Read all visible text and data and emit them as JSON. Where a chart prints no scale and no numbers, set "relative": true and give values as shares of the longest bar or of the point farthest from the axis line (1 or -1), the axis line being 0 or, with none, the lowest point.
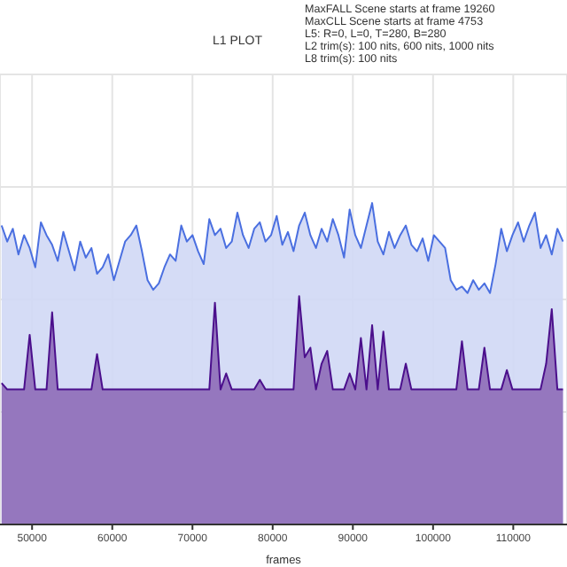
{
  "chart_data": {
    "type": "area",
    "title": "L1 PLOT",
    "xlabel": "frames",
    "relative": true,
    "grid": true,
    "annotations": [
      "MaxFALL Scene starts at frame 19260",
      "MaxCLL Scene starts at frame 4753",
      "L5: R=0, L=0, T=280, B=280",
      "L2 trim(s): 100 nits, 600 nits, 1000 nits",
      "L8 trim(s): 100 nits"
    ],
    "x": [
      46200,
      46900,
      47600,
      48300,
      49000,
      49700,
      50400,
      51100,
      51800,
      52500,
      53200,
      53900,
      54600,
      55300,
      56000,
      56700,
      57400,
      58100,
      58800,
      59500,
      60200,
      60900,
      61600,
      62300,
      63000,
      63700,
      64400,
      65100,
      65800,
      66500,
      67200,
      67900,
      68600,
      69300,
      70000,
      70700,
      71400,
      72100,
      72800,
      73500,
      74200,
      74900,
      75600,
      76300,
      77000,
      77700,
      78400,
      79100,
      79800,
      80500,
      81200,
      81900,
      82600,
      83300,
      84000,
      84700,
      85400,
      86100,
      86800,
      87500,
      88200,
      88900,
      89600,
      90300,
      91000,
      91700,
      92400,
      93100,
      93800,
      94500,
      95200,
      95900,
      96600,
      97300,
      98000,
      98700,
      99400,
      100100,
      100800,
      101500,
      102200,
      102900,
      103600,
      104300,
      105000,
      105700,
      106400,
      107100,
      107800,
      108500,
      109200,
      109900,
      110600,
      111300,
      112000,
      112700,
      113400,
      114100,
      114800,
      115500,
      116200
    ],
    "xlim": [
      46000,
      116700
    ],
    "xticks": [
      50000,
      60000,
      70000,
      80000,
      90000,
      100000,
      110000
    ],
    "series": [
      {
        "color": "#4a6fe0",
        "values": [
          0.93,
          0.88,
          0.92,
          0.84,
          0.9,
          0.86,
          0.8,
          0.94,
          0.9,
          0.87,
          0.82,
          0.91,
          0.85,
          0.79,
          0.88,
          0.83,
          0.86,
          0.78,
          0.8,
          0.84,
          0.76,
          0.82,
          0.88,
          0.9,
          0.93,
          0.85,
          0.76,
          0.73,
          0.75,
          0.8,
          0.84,
          0.82,
          0.93,
          0.88,
          0.9,
          0.85,
          0.81,
          0.95,
          0.9,
          0.92,
          0.86,
          0.88,
          0.97,
          0.9,
          0.86,
          0.92,
          0.94,
          0.88,
          0.9,
          0.96,
          0.87,
          0.91,
          0.85,
          0.93,
          0.97,
          0.9,
          0.86,
          0.92,
          0.88,
          0.95,
          0.9,
          0.83,
          0.98,
          0.9,
          0.86,
          0.93,
          1,
          0.88,
          0.84,
          0.91,
          0.86,
          0.9,
          0.93,
          0.87,
          0.85,
          0.89,
          0.82,
          0.9,
          0.88,
          0.86,
          0.76,
          0.73,
          0.74,
          0.72,
          0.76,
          0.73,
          0.75,
          0.72,
          0.81,
          0.92,
          0.85,
          0.9,
          0.94,
          0.88,
          0.93,
          0.97,
          0.86,
          0.9,
          0.84,
          0.92,
          0.88
        ]
      },
      {
        "color": "#4b0f8c",
        "values": [
          0.44,
          0.42,
          0.42,
          0.42,
          0.42,
          0.59,
          0.42,
          0.42,
          0.42,
          0.66,
          0.42,
          0.42,
          0.42,
          0.42,
          0.42,
          0.42,
          0.42,
          0.53,
          0.42,
          0.42,
          0.42,
          0.42,
          0.42,
          0.42,
          0.42,
          0.42,
          0.42,
          0.42,
          0.42,
          0.42,
          0.42,
          0.42,
          0.42,
          0.42,
          0.42,
          0.42,
          0.42,
          0.42,
          0.69,
          0.42,
          0.47,
          0.42,
          0.42,
          0.42,
          0.42,
          0.42,
          0.45,
          0.42,
          0.42,
          0.42,
          0.42,
          0.42,
          0.42,
          0.71,
          0.52,
          0.55,
          0.42,
          0.5,
          0.54,
          0.42,
          0.42,
          0.42,
          0.47,
          0.42,
          0.58,
          0.42,
          0.62,
          0.42,
          0.6,
          0.42,
          0.42,
          0.42,
          0.5,
          0.42,
          0.42,
          0.42,
          0.42,
          0.42,
          0.42,
          0.42,
          0.42,
          0.42,
          0.57,
          0.42,
          0.42,
          0.42,
          0.55,
          0.42,
          0.42,
          0.42,
          0.48,
          0.42,
          0.42,
          0.42,
          0.42,
          0.42,
          0.42,
          0.5,
          0.67,
          0.42,
          0.42
        ]
      }
    ]
  }
}
